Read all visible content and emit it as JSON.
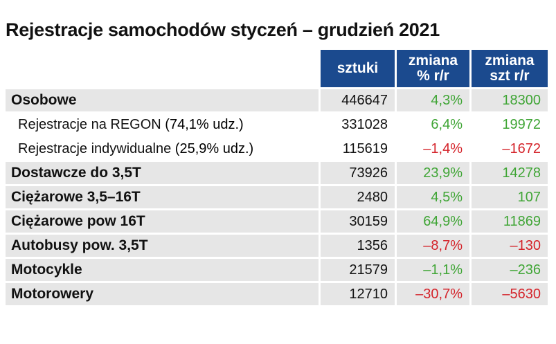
{
  "title": "Rejestracje samochodów styczeń – grudzień 2021",
  "header": {
    "col_sztuki": "sztuki",
    "col_pct_l1": "zmiana",
    "col_pct_l2": "% r/r",
    "col_szt_l1": "zmiana",
    "col_szt_l2": "szt r/r"
  },
  "colors": {
    "header_bg": "#1b4a8e",
    "row_shade": "#e6e6e6",
    "positive": "#3fa535",
    "negative": "#d4232a"
  },
  "rows": [
    {
      "label": "Osobowe",
      "share": "",
      "sztuki": "446647",
      "pct": "4,3%",
      "szt": "18300"
    },
    {
      "label": "Rejestracje na REGON ",
      "share": "(74,1% udz.)",
      "sztuki": "331028",
      "pct": "6,4%",
      "szt": "19972"
    },
    {
      "label": "Rejestracje indywidualne ",
      "share": "(25,9% udz.)",
      "sztuki": "115619",
      "pct": "–1,4%",
      "szt": "–1672"
    },
    {
      "label": "Dostawcze do 3,5T",
      "share": "",
      "sztuki": "73926",
      "pct": "23,9%",
      "szt": "14278"
    },
    {
      "label": "Ciężarowe 3,5–16T",
      "share": "",
      "sztuki": "2480",
      "pct": "4,5%",
      "szt": "107"
    },
    {
      "label": "Ciężarowe pow 16T",
      "share": "",
      "sztuki": "30159",
      "pct": "64,9%",
      "szt": "11869"
    },
    {
      "label": "Autobusy pow. 3,5T",
      "share": "",
      "sztuki": "1356",
      "pct": "–8,7%",
      "szt": "–130"
    },
    {
      "label": "Motocykle",
      "share": "",
      "sztuki": "21579",
      "pct": "–1,1%",
      "szt": "–236"
    },
    {
      "label": "Motorowery",
      "share": "",
      "sztuki": "12710",
      "pct": "–30,7%",
      "szt": "–5630"
    }
  ]
}
